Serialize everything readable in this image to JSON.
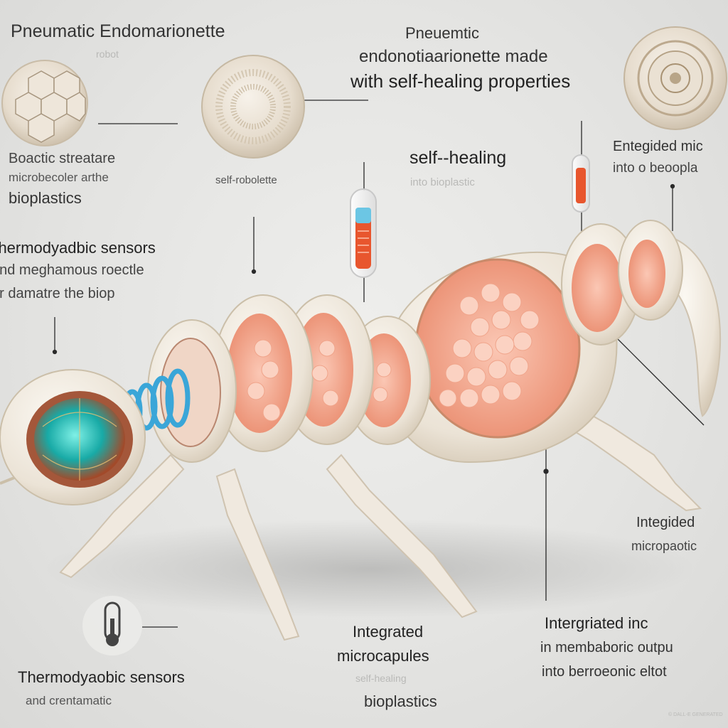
{
  "title": "Pneumatic Endomarionette",
  "title_sub": "robot",
  "header": {
    "line1": "Pneuemtic",
    "line2": "endonotiaarionette made",
    "line3": "with self-healing properties"
  },
  "labels": {
    "bioplastic": {
      "line1": "Boactic streatare",
      "line2": "microbecoler arthe",
      "line3": "bioplastics"
    },
    "self_robolette": "self-robolette",
    "self_healing": {
      "line1": "self--healing",
      "line2": "into bioplastic"
    },
    "integrated_top": {
      "line1": "Entegided mic",
      "line2": "into o beoopla"
    },
    "thermo_top": {
      "line1": "Thermodyadbic sensors",
      "line2": "and meghamous roectle",
      "line3": "or damatre the biop"
    },
    "integrated_right": {
      "line1": "Integided",
      "line2": "micropaotic"
    },
    "integrated_center": {
      "line1": "Integrated",
      "line2": "microcapules",
      "line3": "self-healing",
      "line4": "bioplastics"
    },
    "interg_right": {
      "line1": "Intergriated inc",
      "line2": "in membaboric outpu",
      "line3": "into berroeonic eltot"
    },
    "thermo_bottom": {
      "line1": "Thermodyaobic sensors",
      "line2": "and crentamatic"
    },
    "corner_note": "© DALL-E GENERATED"
  },
  "colors": {
    "shell": "#efe8de",
    "tissue": "#f3a88f",
    "capsule": "#fbd2c2",
    "core": "#1fb6b0",
    "ring": "#3aa6d8",
    "line": "#2a2a2a"
  },
  "icons": [
    "thermometer-icon",
    "bioplastic-disc-icon",
    "self-healing-disc-icon",
    "integrated-disc-icon",
    "test-tube-icon"
  ]
}
